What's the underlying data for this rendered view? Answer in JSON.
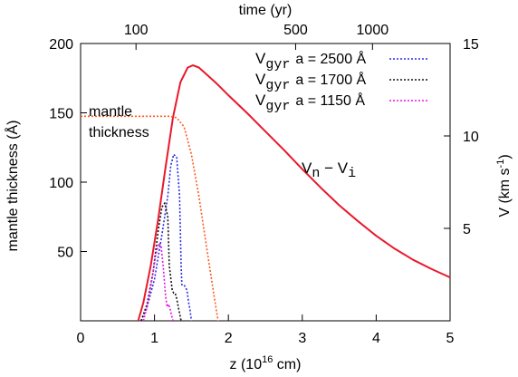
{
  "chart_data": {
    "type": "line",
    "xlabel": "z (10",
    "xlabel_sup": "16",
    "xlabel_tail": " cm)",
    "x_top_label": "time (yr)",
    "ylabel_left": "mantle thickness (Å)",
    "ylabel_right": "V (km s",
    "ylabel_right_sup": "-1",
    "ylabel_right_tail": ")",
    "xlim": [
      0,
      5
    ],
    "ylim_left": [
      0,
      200
    ],
    "ylim_right": [
      0,
      15
    ],
    "x_ticks": [
      "0",
      "1",
      "2",
      "3",
      "4",
      "5"
    ],
    "x_tick_values": [
      0,
      1,
      2,
      3,
      4,
      5
    ],
    "y_left_ticks": [
      "50",
      "100",
      "150",
      "200"
    ],
    "y_left_tick_values": [
      50,
      100,
      150,
      200
    ],
    "y_right_ticks": [
      "5",
      "10",
      "15"
    ],
    "y_right_tick_values": [
      5,
      10,
      15
    ],
    "top_ticks": [
      {
        "label": "100",
        "z": 0.75
      },
      {
        "label": "500",
        "z": 2.91
      },
      {
        "label": "1000",
        "z": 3.95
      }
    ],
    "annotations": {
      "mantle": "mantle",
      "thickness": "thickness",
      "vn_vi_V": "V",
      "vn_vi_n": "n",
      "vn_vi_minus": " − V",
      "vn_vi_i": "i"
    },
    "series": [
      {
        "name": "Vn − Vi",
        "color": "#e8192c",
        "style": "solid",
        "axis": "right",
        "x": [
          0.78,
          0.85,
          0.95,
          1.05,
          1.15,
          1.25,
          1.35,
          1.45,
          1.52,
          1.6,
          1.7,
          1.85,
          2.0,
          2.25,
          2.5,
          2.75,
          3.0,
          3.25,
          3.5,
          3.75,
          4.0,
          4.25,
          4.5,
          4.75,
          5.0
        ],
        "values": [
          0,
          1.0,
          3.0,
          5.5,
          8.3,
          11.0,
          12.9,
          13.7,
          13.82,
          13.7,
          13.35,
          12.8,
          12.2,
          11.25,
          10.25,
          9.25,
          8.2,
          7.2,
          6.25,
          5.4,
          4.6,
          3.9,
          3.3,
          2.8,
          2.35
        ]
      },
      {
        "name": "mantle thickness",
        "color": "#ff5a1f",
        "style": "dotted",
        "axis": "left",
        "x": [
          0.0,
          0.3,
          0.6,
          0.9,
          1.1,
          1.2,
          1.3,
          1.4,
          1.5,
          1.6,
          1.7,
          1.8,
          1.86
        ],
        "values": [
          147.5,
          147.5,
          147.5,
          147.5,
          147.5,
          147.5,
          146.5,
          140,
          120,
          90,
          55,
          20,
          0
        ]
      },
      {
        "name": "a = 2500 Å",
        "color": "#2a2ee8",
        "style": "dotted",
        "axis": "left",
        "x": [
          0.82,
          0.9,
          1.0,
          1.1,
          1.18,
          1.22,
          1.26,
          1.3,
          1.34,
          1.36,
          1.37,
          1.4,
          1.44,
          1.46,
          1.48,
          1.5
        ],
        "values": [
          0,
          10,
          30,
          62,
          90,
          112,
          120,
          118,
          90,
          40,
          26,
          26,
          22,
          14,
          8,
          0
        ]
      },
      {
        "name": "a = 1700 Å",
        "color": "#111111",
        "style": "dotted",
        "axis": "left",
        "x": [
          0.82,
          0.9,
          0.98,
          1.05,
          1.1,
          1.14,
          1.18,
          1.2,
          1.24,
          1.26,
          1.28,
          1.3,
          1.33,
          1.36
        ],
        "values": [
          0,
          12,
          35,
          65,
          82,
          85,
          75,
          40,
          22,
          20,
          20,
          16,
          8,
          0
        ]
      },
      {
        "name": "a = 1150 Å",
        "color": "#e815e8",
        "style": "dotted",
        "axis": "left",
        "x": [
          0.85,
          0.9,
          0.96,
          1.02,
          1.06,
          1.09,
          1.12,
          1.15,
          1.17,
          1.19,
          1.21,
          1.23,
          1.25
        ],
        "values": [
          0,
          10,
          28,
          48,
          56,
          54,
          38,
          18,
          10,
          12,
          9,
          4,
          0
        ]
      }
    ],
    "legend": {
      "position": "top-right",
      "entries": [
        {
          "prefix": "V",
          "sub": "gyr",
          "label": "a = 2500 Å",
          "color": "#2a2ee8"
        },
        {
          "prefix": "V",
          "sub": "gyr",
          "label": "a = 1700 Å",
          "color": "#111111"
        },
        {
          "prefix": "V",
          "sub": "gyr",
          "label": "a = 1150 Å",
          "color": "#e815e8"
        }
      ]
    }
  }
}
